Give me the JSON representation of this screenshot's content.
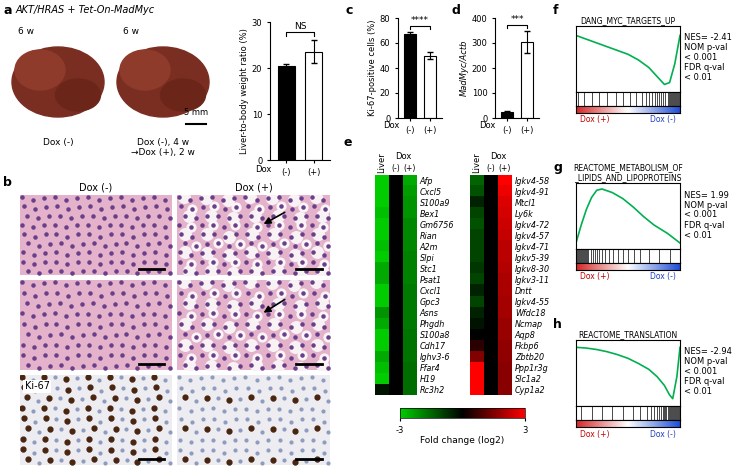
{
  "panels": [
    "a",
    "b",
    "c",
    "d",
    "e",
    "f",
    "g",
    "h"
  ],
  "images": {
    "a_title": "AKT/HRAS + Tet-On-MadMyc",
    "a_photos": [
      {
        "time": "6 w",
        "label": "Dox (-)"
      },
      {
        "time": "6 w",
        "label": "Dox (-), 4 w\n→Dox (+), 2 w"
      }
    ],
    "a_scale": "5 mm",
    "b_columns": [
      "Dox (-)",
      "Dox (+)"
    ],
    "b_stain": "Ki-67"
  },
  "chart_data": [
    {
      "type": "bar",
      "categories": [
        "(-)",
        "(+)"
      ],
      "x_label": "Dox",
      "y_label": "Liver-to-body weight ratio (%)",
      "values": [
        20.5,
        23.5
      ],
      "errors": [
        0.3,
        2.5
      ],
      "colors": [
        "#000000",
        "#ffffff"
      ],
      "ylim": [
        0,
        30
      ],
      "yticks": [
        0,
        10,
        20,
        30
      ],
      "annotation": "NS"
    },
    {
      "type": "bar",
      "categories": [
        "(-)",
        "(+)"
      ],
      "x_label": "Dox",
      "y_label": "Ki-67-positive cells (%)",
      "values": [
        67,
        50
      ],
      "errors": [
        2,
        3
      ],
      "colors": [
        "#000000",
        "#ffffff"
      ],
      "ylim": [
        0,
        80
      ],
      "yticks": [
        0,
        20,
        40,
        60,
        80
      ],
      "annotation": "****"
    },
    {
      "type": "bar",
      "categories": [
        "(-)",
        "(+)"
      ],
      "x_label": "Dox",
      "y_label": "MadMyc/Actb",
      "values": [
        25,
        305
      ],
      "errors": [
        5,
        45
      ],
      "colors": [
        "#000000",
        "#ffffff"
      ],
      "ylim": [
        0,
        400
      ],
      "yticks": [
        0,
        100,
        200,
        300,
        400
      ],
      "annotation": "***"
    },
    {
      "type": "heatmap",
      "columns": [
        "Liver",
        "(-)",
        "(+)"
      ],
      "column_group": "Dox",
      "colors": [
        "#00cc00",
        "#000000",
        "#ff0000"
      ],
      "colorbar": {
        "label": "Fold change (log2)",
        "range": [
          -3,
          3
        ],
        "ticks": [
          -3,
          3
        ]
      },
      "blocks": [
        {
          "rows": [
            "Afp",
            "Cxcl5",
            "S100a9",
            "Bex1",
            "Gm6756",
            "Rian",
            "A2m",
            "Slpi",
            "Stc1",
            "Psat1",
            "Cxcl1",
            "Gpc3",
            "Asns",
            "Phgdh",
            "S100a8",
            "Cdh17",
            "Ighv3-6",
            "Ffar4",
            "H19",
            "Rc3h2"
          ],
          "cells": [
            [
              -3,
              0,
              -2.5
            ],
            [
              -3,
              0,
              -2.3
            ],
            [
              -3,
              0,
              -2.2
            ],
            [
              -2.8,
              0,
              -2.2
            ],
            [
              -3,
              0,
              -2.0
            ],
            [
              -3,
              0,
              -2.0
            ],
            [
              -2.8,
              0,
              -2.0
            ],
            [
              -3,
              0,
              -1.9
            ],
            [
              -2.5,
              0,
              -1.9
            ],
            [
              -2.5,
              0,
              -1.9
            ],
            [
              -3,
              0,
              -1.8
            ],
            [
              -3,
              0,
              -1.8
            ],
            [
              -2.2,
              0,
              -1.8
            ],
            [
              -2.5,
              0,
              -1.8
            ],
            [
              -3,
              0,
              -1.7
            ],
            [
              -3,
              0,
              -1.7
            ],
            [
              -2.5,
              0,
              -1.7
            ],
            [
              -2.8,
              0,
              -1.6
            ],
            [
              -3,
              0,
              -1.6
            ],
            [
              -0.3,
              0,
              -1.6
            ]
          ]
        },
        {
          "rows": [
            "Igkv4-58",
            "Igkv4-91",
            "Mtcl1",
            "Ly6k",
            "Igkv4-72",
            "Igkv4-57",
            "Igkv4-71",
            "Igkv5-39",
            "Igkv8-30",
            "Igkv3-11",
            "Dntt",
            "Igkv4-55",
            "Wfdc18",
            "Ncmap",
            "Aqp8",
            "Fkbp6",
            "Zbtb20",
            "Ppp1r3g",
            "Slc1a2",
            "Cyp1a2"
          ],
          "cells": [
            [
              -1.5,
              0,
              3
            ],
            [
              -1.2,
              0,
              2.8
            ],
            [
              -0.5,
              0,
              2.6
            ],
            [
              -1,
              0,
              2.5
            ],
            [
              -1.2,
              0,
              2.4
            ],
            [
              -1,
              0,
              2.3
            ],
            [
              -1,
              0,
              2.2
            ],
            [
              -1,
              0,
              2.2
            ],
            [
              -0.8,
              0,
              2.1
            ],
            [
              -1,
              0,
              2.0
            ],
            [
              -0.5,
              0,
              2.0
            ],
            [
              -1,
              0,
              1.9
            ],
            [
              -0.5,
              0,
              1.9
            ],
            [
              -0.3,
              0,
              1.8
            ],
            [
              0,
              0,
              1.8
            ],
            [
              0.5,
              0,
              1.7
            ],
            [
              1.5,
              0,
              1.7
            ],
            [
              3,
              0,
              1.6
            ],
            [
              3,
              0,
              1.6
            ],
            [
              3,
              0,
              1.6
            ]
          ]
        }
      ]
    },
    {
      "type": "line",
      "title": "DANG_MYC_TARGETS_UP",
      "color": "#00b050",
      "tick_labels": false,
      "x": [
        0,
        5,
        10,
        20,
        30,
        40,
        50,
        60,
        70,
        75,
        80,
        85,
        90,
        95,
        100
      ],
      "values": [
        0,
        -0.02,
        -0.04,
        -0.08,
        -0.12,
        -0.16,
        -0.2,
        -0.26,
        -0.34,
        -0.4,
        -0.46,
        -0.52,
        -0.5,
        -0.3,
        0
      ],
      "xlim": [
        0,
        100
      ],
      "ylim": [
        -0.6,
        0.1
      ],
      "hits": [
        2,
        8,
        15,
        22,
        30,
        38,
        45,
        52,
        58,
        63,
        67,
        70,
        73,
        76,
        78,
        80,
        82,
        84,
        86,
        88,
        89,
        90,
        91,
        92,
        93,
        94,
        95,
        96,
        97,
        98,
        99
      ],
      "phenotypes": [
        "Dox (+)",
        "Dox (-)"
      ],
      "stats": [
        "NES= -2.41",
        "NOM p-val",
        "< 0.001",
        "FDR q-val",
        "< 0.01"
      ]
    },
    {
      "type": "line",
      "title": "REACTOME_METABOLISM_OF\n_LIPIDS_AND_LIPOPROTEINS",
      "color": "#00b050",
      "tick_labels": false,
      "x": [
        0,
        5,
        10,
        15,
        20,
        25,
        35,
        45,
        55,
        65,
        75,
        88,
        100
      ],
      "values": [
        0,
        0.15,
        0.28,
        0.38,
        0.44,
        0.45,
        0.42,
        0.37,
        0.3,
        0.22,
        0.15,
        0.08,
        0
      ],
      "xlim": [
        0,
        100
      ],
      "ylim": [
        -0.05,
        0.5
      ],
      "hits": [
        1,
        2,
        3,
        4,
        5,
        6,
        7,
        8,
        9,
        10,
        11,
        12,
        14,
        16,
        18,
        20,
        22,
        25,
        28,
        32,
        36,
        40,
        45,
        50,
        56,
        62,
        70,
        80,
        90
      ],
      "phenotypes": [
        "Dox (+)",
        "Dox (-)"
      ],
      "stats": [
        "NES= 1.99",
        "NOM p-val",
        "< 0.001",
        "FDR q-val",
        "< 0.01"
      ]
    },
    {
      "type": "line",
      "title": "REACTOME_TRANSLATION",
      "color": "#00b050",
      "tick_labels": false,
      "x": [
        0,
        10,
        20,
        30,
        40,
        50,
        60,
        70,
        78,
        85,
        90,
        93,
        97,
        100
      ],
      "values": [
        0,
        -0.01,
        -0.03,
        -0.06,
        -0.1,
        -0.15,
        -0.22,
        -0.3,
        -0.4,
        -0.52,
        -0.65,
        -0.7,
        -0.4,
        0
      ],
      "xlim": [
        0,
        100
      ],
      "ylim": [
        -0.8,
        0.1
      ],
      "hits": [
        5,
        15,
        25,
        35,
        45,
        55,
        62,
        68,
        72,
        75,
        78,
        80,
        82,
        84,
        85,
        86,
        87,
        88,
        89,
        90,
        91,
        92,
        93,
        94,
        95,
        96,
        97,
        98,
        99
      ],
      "phenotypes": [
        "Dox (+)",
        "Dox (-)"
      ],
      "stats": [
        "NES= -2.94",
        "NOM p-val",
        "< 0.001",
        "FDR q-val",
        "< 0.01"
      ]
    }
  ]
}
